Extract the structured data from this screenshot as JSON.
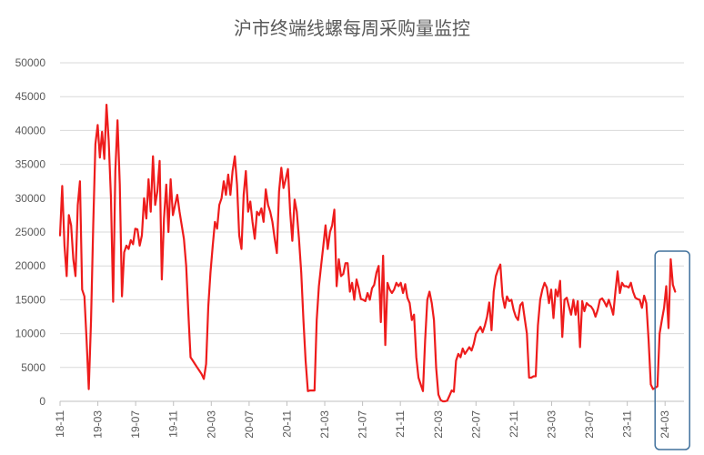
{
  "chart_data": {
    "type": "line",
    "title": "沪市终端线螺每周采购量监控",
    "xlabel": "",
    "ylabel": "",
    "ylim": [
      0,
      50000
    ],
    "yticks": [
      0,
      5000,
      10000,
      15000,
      20000,
      25000,
      30000,
      35000,
      40000,
      45000,
      50000
    ],
    "xticks": [
      "18-11",
      "19-03",
      "19-07",
      "19-11",
      "20-03",
      "20-07",
      "20-11",
      "21-03",
      "21-07",
      "21-11",
      "22-03",
      "22-07",
      "22-11",
      "23-03",
      "23-07",
      "23-11",
      "24-03"
    ],
    "x_range_weeks": [
      0,
      282
    ],
    "grid": "horizontal",
    "legend": "none",
    "highlight": "box around latest weeks (24-03 onward)",
    "colors": {
      "series": "#ee1c1c",
      "grid": "#d9d9d9",
      "axis": "#bfbfbf",
      "text": "#595959",
      "highlight": "#41719c"
    },
    "series": [
      {
        "values": [
          24500,
          31800,
          23000,
          18500,
          27500,
          26000,
          21000,
          18500,
          29000,
          32500,
          16500,
          15500,
          9000,
          1800,
          12000,
          26000,
          38000,
          40800,
          36000,
          39800,
          35800,
          43800,
          38500,
          30000,
          14700,
          34000,
          41500,
          32000,
          15500,
          22000,
          23000,
          22500,
          23800,
          23200,
          25500,
          25400,
          23000,
          24500,
          30000,
          27000,
          32800,
          28000,
          36200,
          29000,
          31000,
          35500,
          18000,
          27000,
          32000,
          25000,
          32800,
          27500,
          29000,
          30500,
          28000,
          26000,
          24000,
          20000,
          13000,
          6500,
          6000,
          5500,
          5000,
          4500,
          4000,
          3300,
          5500,
          14000,
          19000,
          23000,
          26500,
          25500,
          29000,
          30000,
          32500,
          30500,
          33500,
          30500,
          34000,
          36200,
          32000,
          24500,
          22500,
          30500,
          34000,
          28000,
          29500,
          26500,
          24000,
          28000,
          27500,
          28500,
          26500,
          31300,
          29000,
          28000,
          26500,
          24000,
          21900,
          31000,
          34500,
          31500,
          32800,
          34300,
          28000,
          23700,
          29800,
          28000,
          24000,
          19000,
          12000,
          6000,
          1500,
          1600,
          1600,
          1600,
          12000,
          17000,
          20000,
          23000,
          26000,
          22500,
          25000,
          26000,
          28300,
          17000,
          21000,
          18500,
          18800,
          20400,
          20400,
          16200,
          17500,
          15000,
          18000,
          16700,
          15100,
          15000,
          14800,
          16000,
          15000,
          16700,
          17200,
          19000,
          20000,
          11700,
          21500,
          8300,
          17500,
          16500,
          16000,
          16500,
          17500,
          17000,
          17500,
          16000,
          17300,
          15300,
          14500,
          12000,
          12800,
          6500,
          3500,
          2500,
          1500,
          9000,
          15000,
          16200,
          14500,
          12000,
          5000,
          1000,
          200,
          0,
          0,
          100,
          800,
          1600,
          1400,
          6000,
          7000,
          6500,
          7800,
          7000,
          7500,
          8000,
          7500,
          8500,
          10000,
          10500,
          11000,
          10200,
          11200,
          12500,
          14600,
          10500,
          16200,
          18500,
          19500,
          20200,
          15500,
          13800,
          15500,
          14800,
          15000,
          13500,
          12500,
          12000,
          14200,
          14600,
          12200,
          10000,
          3500,
          3500,
          3700,
          3700,
          11200,
          15000,
          16500,
          17500,
          16800,
          14500,
          16500,
          12300,
          16500,
          15500,
          17800,
          9500,
          15000,
          15300,
          14000,
          12800,
          15000,
          12800,
          14800,
          8000,
          14800,
          13300,
          14500,
          14200,
          14000,
          13500,
          12500,
          13500,
          15000,
          15200,
          14700,
          14000,
          15000,
          14000,
          12800,
          16200,
          19200,
          16000,
          17500,
          17000,
          17000,
          16800,
          17500,
          16200,
          15300,
          15100,
          15000,
          13800,
          15600,
          14500,
          9000,
          2500,
          1800,
          2000,
          2200,
          10000,
          12000,
          13800,
          17000,
          10800,
          21000,
          17200,
          16200
        ]
      }
    ]
  }
}
